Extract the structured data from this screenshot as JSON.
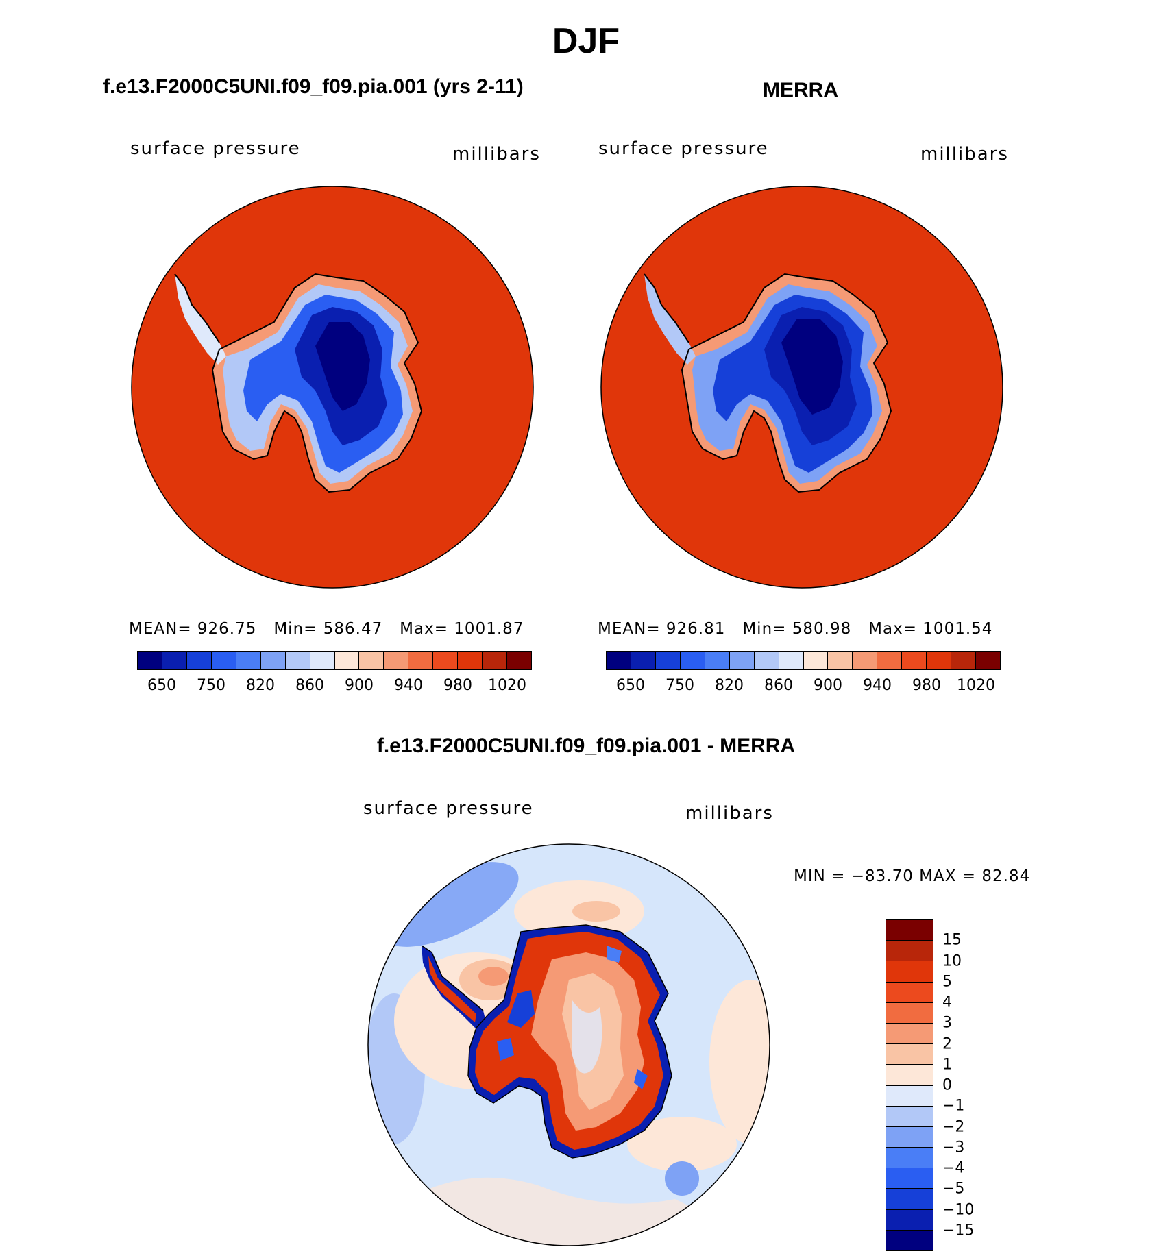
{
  "title": "DJF",
  "panels": [
    {
      "title": "f.e13.F2000C5UNI.f09_f09.pia.001 (yrs 2-11)",
      "left_label": "surface pressure",
      "right_label": "millibars",
      "stats": {
        "mean_label": "MEAN=",
        "mean": "926.75",
        "min_label": "Min=",
        "min": "586.47",
        "max_label": "Max=",
        "max": "1001.87"
      }
    },
    {
      "title": "MERRA",
      "left_label": "surface pressure",
      "right_label": "millibars",
      "stats": {
        "mean_label": "MEAN=",
        "mean": "926.81",
        "min_label": "Min=",
        "min": "580.98",
        "max_label": "Max=",
        "max": "1001.54"
      }
    }
  ],
  "diff_panel": {
    "title": "f.e13.F2000C5UNI.f09_f09.pia.001 - MERRA",
    "left_label": "surface pressure",
    "right_label": "millibars",
    "minmax": "MIN = −83.70 MAX =   82.84"
  },
  "abs_colorbar": {
    "colors": [
      "#00007f",
      "#0a1fb0",
      "#1640d8",
      "#2a5ef2",
      "#4a7ef6",
      "#7ea2f5",
      "#b2c8f7",
      "#dfe9fb",
      "#fde7d8",
      "#f9c4a5",
      "#f59a75",
      "#f16c40",
      "#ec4a1e",
      "#e0360a",
      "#b8260a",
      "#7a0000"
    ],
    "labels": [
      "650",
      "750",
      "820",
      "860",
      "900",
      "940",
      "980",
      "1020"
    ]
  },
  "diff_colorbar": {
    "colors": [
      "#00007f",
      "#0a1fb0",
      "#1640d8",
      "#2a5ef2",
      "#4a7ef6",
      "#7ea2f5",
      "#b2c8f7",
      "#dfe9fb",
      "#fde7d8",
      "#f9c4a5",
      "#f59a75",
      "#f16c40",
      "#ec4a1e",
      "#e0360a",
      "#b8260a",
      "#7a0000"
    ],
    "labels": [
      "15",
      "10",
      "5",
      "4",
      "3",
      "2",
      "1",
      "0",
      "−1",
      "−2",
      "−3",
      "−4",
      "−5",
      "−10",
      "−15"
    ]
  },
  "colors": {
    "ocean_pressure": "#e0360a",
    "antarctica_core": "#000a80",
    "diff_background": "#d6e6fb"
  }
}
